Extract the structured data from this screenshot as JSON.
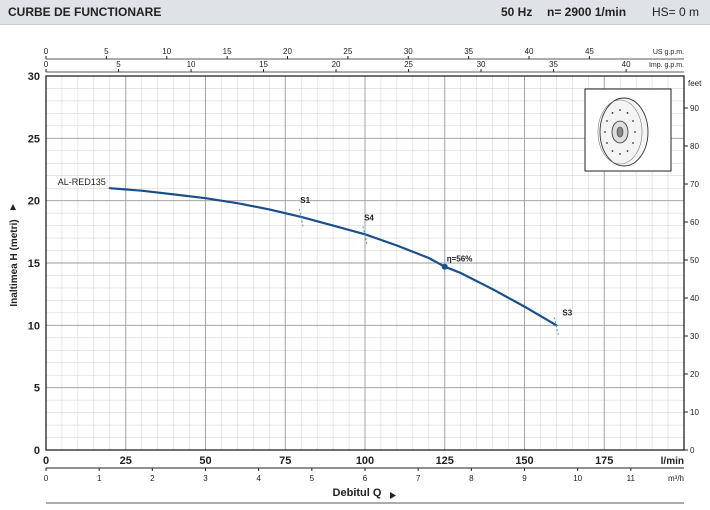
{
  "header": {
    "title": "CURBE DE FUNCTIONARE",
    "frequency": "50 Hz",
    "speed": "n= 2900  1/min",
    "suction_head": "HS= 0 m"
  },
  "chart_data": {
    "type": "line",
    "ylabel": "Inaltimea H (metri)",
    "xlabel": "Debitul Q",
    "axes": {
      "primary_x": {
        "unit": "l/min",
        "min": 0,
        "max": 200,
        "ticks": [
          0,
          25,
          50,
          75,
          100,
          125,
          150,
          175
        ]
      },
      "primary_y": {
        "unit": "m",
        "min": 0,
        "max": 30,
        "ticks": [
          0,
          5,
          10,
          15,
          20,
          25,
          30
        ]
      },
      "secondary_y": {
        "unit": "feet",
        "min": 0,
        "max": 98.4,
        "ticks": [
          0,
          10,
          20,
          30,
          40,
          50,
          60,
          70,
          80,
          90
        ]
      },
      "top_usgpm": {
        "unit": "US g.p.m.",
        "factor": 0.26417,
        "ticks": [
          0,
          5,
          10,
          15,
          20,
          25,
          30,
          35,
          40,
          45
        ]
      },
      "top_impgpm": {
        "unit": "Imp. g.p.m.",
        "factor": 0.21997,
        "ticks": [
          0,
          5,
          10,
          15,
          20,
          25,
          30,
          35,
          40
        ]
      },
      "bottom_m3h": {
        "unit": "m³/h",
        "factor": 0.06,
        "ticks": [
          0,
          1,
          2,
          3,
          4,
          5,
          6,
          7,
          8,
          9,
          10,
          11
        ]
      }
    },
    "grid": true,
    "series": [
      {
        "name": "AL-RED135",
        "color": "#1b4f8a",
        "x": [
          20,
          30,
          40,
          50,
          60,
          70,
          80,
          90,
          100,
          110,
          120,
          125,
          130,
          140,
          150,
          160
        ],
        "y": [
          21,
          20.8,
          20.5,
          20.2,
          19.8,
          19.3,
          18.7,
          18.0,
          17.3,
          16.4,
          15.4,
          14.7,
          14.2,
          12.9,
          11.5,
          10
        ]
      }
    ],
    "markers": [
      {
        "label": "S1",
        "x": 80
      },
      {
        "label": "S4",
        "x": 100
      },
      {
        "label": "S3",
        "x": 160
      }
    ],
    "efficiency_point": {
      "label": "η=56%",
      "x": 125,
      "y": 14.7
    }
  }
}
